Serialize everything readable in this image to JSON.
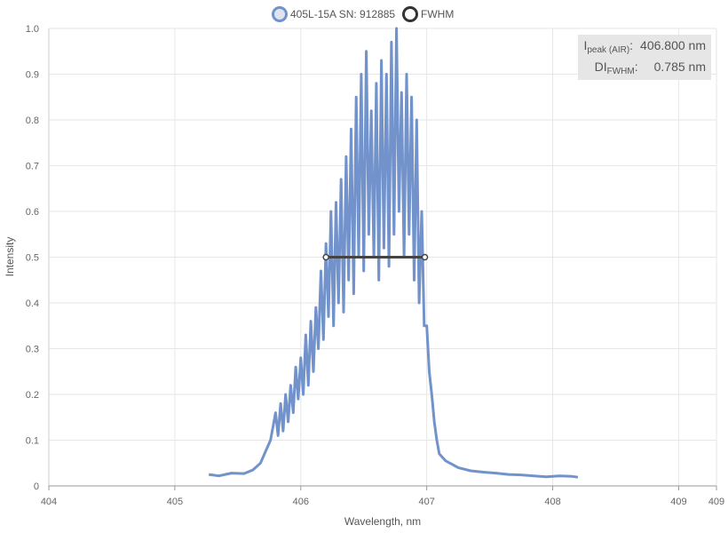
{
  "chart_data": {
    "type": "line",
    "title": "",
    "xlabel": "Wavelength, nm",
    "ylabel": "Intensity",
    "xlim": [
      404,
      409.3
    ],
    "ylim": [
      0,
      1.0
    ],
    "x_tick_labels": [
      "404",
      "405",
      "406",
      "407",
      "408",
      "409",
      "409"
    ],
    "y_tick_labels": [
      "0",
      "0.1",
      "0.2",
      "0.3",
      "0.4",
      "0.5",
      "0.6",
      "0.7",
      "0.8",
      "0.9",
      "1.0"
    ],
    "grid": true,
    "legend_position": "top",
    "series": [
      {
        "name": "405L-15A SN: 912885",
        "color": "#7192cb",
        "x": [
          405.27,
          405.35,
          405.45,
          405.55,
          405.62,
          405.68,
          405.72,
          405.76,
          405.78,
          405.8,
          405.82,
          405.84,
          405.86,
          405.88,
          405.9,
          405.92,
          405.94,
          405.96,
          405.98,
          406.0,
          406.02,
          406.04,
          406.06,
          406.08,
          406.1,
          406.12,
          406.14,
          406.16,
          406.18,
          406.2,
          406.22,
          406.24,
          406.26,
          406.28,
          406.3,
          406.32,
          406.34,
          406.36,
          406.38,
          406.4,
          406.42,
          406.44,
          406.46,
          406.48,
          406.5,
          406.52,
          406.54,
          406.56,
          406.58,
          406.6,
          406.62,
          406.64,
          406.66,
          406.68,
          406.7,
          406.72,
          406.74,
          406.76,
          406.78,
          406.8,
          406.82,
          406.84,
          406.86,
          406.88,
          406.9,
          406.92,
          406.94,
          406.96,
          406.98,
          407.0,
          407.02,
          407.04,
          407.06,
          407.08,
          407.1,
          407.15,
          407.25,
          407.35,
          407.45,
          407.55,
          407.65,
          407.75,
          407.85,
          407.95,
          408.05,
          408.15,
          408.2
        ],
        "y": [
          0.025,
          0.022,
          0.028,
          0.027,
          0.035,
          0.05,
          0.075,
          0.1,
          0.13,
          0.16,
          0.11,
          0.18,
          0.12,
          0.2,
          0.14,
          0.22,
          0.16,
          0.26,
          0.19,
          0.28,
          0.2,
          0.33,
          0.22,
          0.36,
          0.25,
          0.39,
          0.3,
          0.47,
          0.32,
          0.53,
          0.37,
          0.6,
          0.35,
          0.62,
          0.4,
          0.67,
          0.38,
          0.72,
          0.45,
          0.78,
          0.42,
          0.85,
          0.5,
          0.9,
          0.47,
          0.95,
          0.55,
          0.82,
          0.5,
          0.88,
          0.45,
          0.93,
          0.52,
          0.9,
          0.48,
          0.97,
          0.55,
          1.0,
          0.6,
          0.86,
          0.5,
          0.9,
          0.55,
          0.85,
          0.45,
          0.8,
          0.4,
          0.6,
          0.35,
          0.35,
          0.25,
          0.2,
          0.14,
          0.1,
          0.07,
          0.055,
          0.04,
          0.033,
          0.03,
          0.028,
          0.025,
          0.024,
          0.022,
          0.02,
          0.022,
          0.021,
          0.019
        ]
      },
      {
        "name": "FWHM",
        "color": "#444444",
        "x": [
          406.2,
          406.985
        ],
        "y": [
          0.5,
          0.5
        ]
      }
    ],
    "annotations": {
      "peak_label": "I",
      "peak_sub": "peak (AIR)",
      "peak_value": "406.800 nm",
      "fwhm_label": "DI",
      "fwhm_sub": "FWHM",
      "fwhm_value": "0.785 nm"
    }
  }
}
